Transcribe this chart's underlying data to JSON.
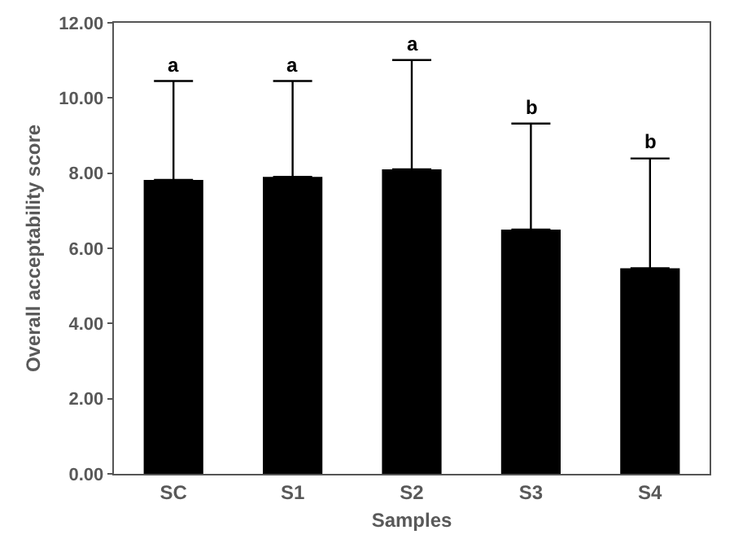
{
  "chart_data": {
    "type": "bar",
    "xlabel": "Samples",
    "ylabel": "Overall acceptability score",
    "categories": [
      "SC",
      "S1",
      "S2",
      "S3",
      "S4"
    ],
    "values": [
      7.82,
      7.9,
      8.1,
      6.5,
      5.47
    ],
    "color": "#000000",
    "errors": [
      [
        7.82,
        10.45
      ],
      [
        7.9,
        10.45
      ],
      [
        8.1,
        11.01
      ],
      [
        6.5,
        9.32
      ],
      [
        5.47,
        8.39
      ]
    ],
    "ylim": [
      0,
      12
    ],
    "yticks": [
      {
        "value": 0,
        "label": "0.00"
      },
      {
        "value": 2,
        "label": "2.00"
      },
      {
        "value": 4,
        "label": "4.00"
      },
      {
        "value": 6,
        "label": "6.00"
      },
      {
        "value": 8,
        "label": "8.00"
      },
      {
        "value": 10,
        "label": "10.00"
      },
      {
        "value": 12,
        "label": "12.00"
      }
    ],
    "annotations": [
      {
        "text": "a",
        "x": "SC",
        "y": 10.45
      },
      {
        "text": "a",
        "x": "S1",
        "y": 10.45
      },
      {
        "text": "a",
        "x": "S2",
        "y": 11.01
      },
      {
        "text": "b",
        "x": "S3",
        "y": 9.32
      },
      {
        "text": "b",
        "x": "S4",
        "y": 8.39
      }
    ],
    "grid": false,
    "legend": false
  }
}
